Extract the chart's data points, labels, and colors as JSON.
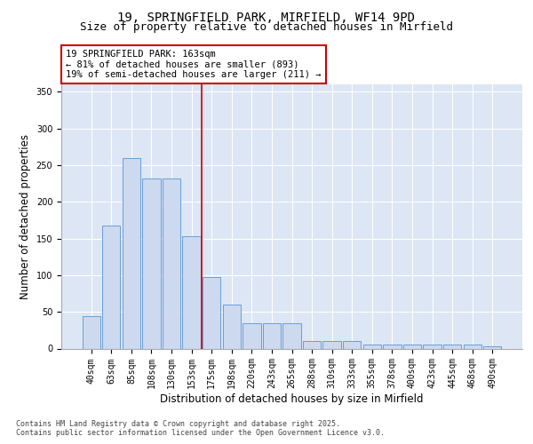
{
  "title_line1": "19, SPRINGFIELD PARK, MIRFIELD, WF14 9PD",
  "title_line2": "Size of property relative to detached houses in Mirfield",
  "xlabel": "Distribution of detached houses by size in Mirfield",
  "ylabel": "Number of detached properties",
  "bar_labels": [
    "40sqm",
    "63sqm",
    "85sqm",
    "108sqm",
    "130sqm",
    "153sqm",
    "175sqm",
    "198sqm",
    "220sqm",
    "243sqm",
    "265sqm",
    "288sqm",
    "310sqm",
    "333sqm",
    "355sqm",
    "378sqm",
    "400sqm",
    "423sqm",
    "445sqm",
    "468sqm",
    "490sqm"
  ],
  "bar_values": [
    44,
    167,
    259,
    232,
    232,
    153,
    97,
    60,
    35,
    35,
    35,
    10,
    10,
    10,
    5,
    5,
    5,
    5,
    5,
    5,
    3
  ],
  "bar_color": "#ccd9ef",
  "bar_edge_color": "#6a9fd8",
  "vline_x": 6.0,
  "vline_color": "#cc0000",
  "annotation_text": "19 SPRINGFIELD PARK: 163sqm\n← 81% of detached houses are smaller (893)\n19% of semi-detached houses are larger (211) →",
  "annotation_box_color": "white",
  "annotation_box_edge": "#cc0000",
  "ylim": [
    0,
    360
  ],
  "yticks": [
    0,
    50,
    100,
    150,
    200,
    250,
    300,
    350
  ],
  "plot_bg_color": "#dce6f5",
  "footer_text": "Contains HM Land Registry data © Crown copyright and database right 2025.\nContains public sector information licensed under the Open Government Licence v3.0.",
  "title_fontsize": 10,
  "subtitle_fontsize": 9,
  "tick_fontsize": 7,
  "label_fontsize": 8.5,
  "annot_fontsize": 7.5
}
